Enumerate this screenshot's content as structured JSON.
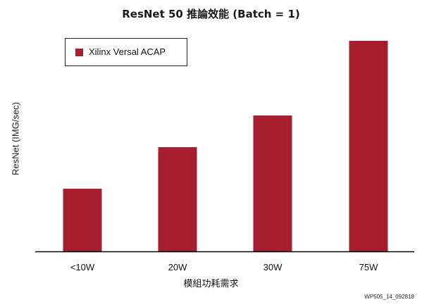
{
  "chart_data": {
    "type": "bar",
    "title": "ResNet 50 推論效能 (Batch = 1)",
    "xlabel": "模組功耗需求",
    "ylabel": "ResNet (IMG/sec)",
    "categories": [
      "<10W",
      "20W",
      "30W",
      "75W"
    ],
    "series": [
      {
        "name": "Xilinx Versal ACAP",
        "values": [
          89,
          148,
          193,
          299
        ]
      }
    ],
    "ylim": [
      0,
      300
    ],
    "grid": false,
    "legend_position": "top-left",
    "bar_color": "#a61e30"
  },
  "footnote": "WP505_14_092818"
}
